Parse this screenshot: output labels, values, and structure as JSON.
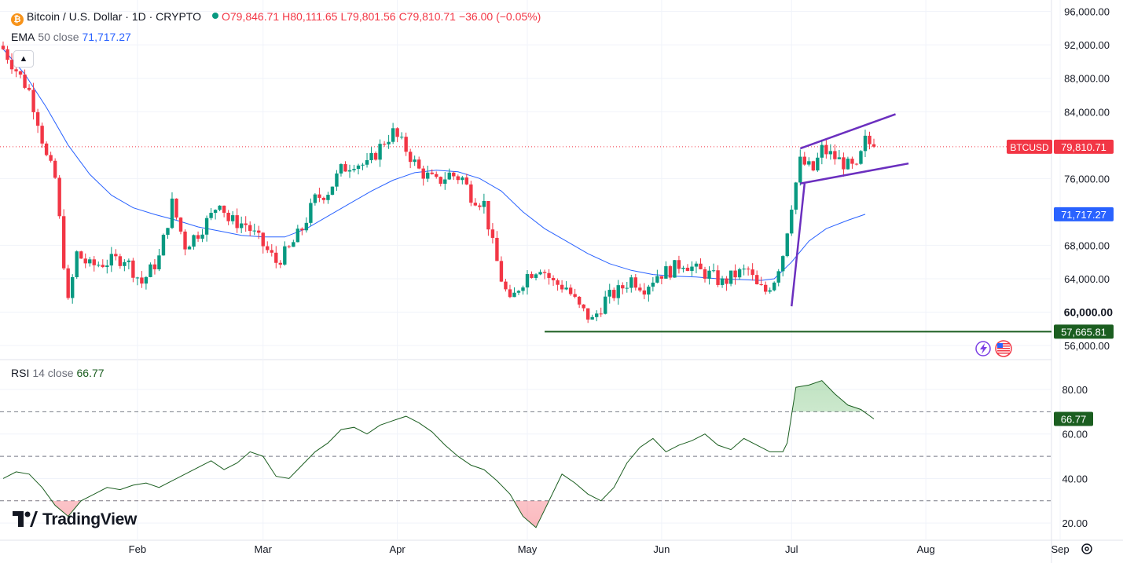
{
  "header": {
    "symbol": "Bitcoin / U.S. Dollar · 1D · CRYPTO",
    "coin_glyph": "₿",
    "o": "O79,846.71",
    "h": "H80,111.65",
    "l": "L79,801.56",
    "c": "C79,810.71",
    "change": "−36.00 (−0.05%)",
    "ema_label": "EMA",
    "ema_params": "50 close",
    "ema_value": "71,717.27",
    "rsi_label": "RSI",
    "rsi_params": "14 close",
    "rsi_value": "66.77"
  },
  "branding": "TradingView",
  "icons": [
    "bitcoin-coin-icon",
    "market-open-dot-icon",
    "collapse-chevron-icon",
    "settings-gear-icon",
    "lightning-icon",
    "us-flag-icon"
  ],
  "colors": {
    "up": "#089981",
    "down": "#f23645",
    "ema": "#2962ff",
    "rsi": "#1b5e20",
    "channel": "#6b2fbf",
    "support": "#1b5e20"
  },
  "chart_data": [
    {
      "type": "candlestick",
      "title": "Bitcoin / U.S. Dollar · 1D · CRYPTO",
      "ylim": [
        54500,
        97000
      ],
      "y_ticks": [
        "96,000.00",
        "92,000.00",
        "88,000.00",
        "84,000.00",
        "76,000.00",
        "68,000.00",
        "64,000.00",
        "56,000.00"
      ],
      "y_ticks_bold": [
        "60,000.00"
      ],
      "x_ticks": [
        "Feb",
        "Mar",
        "Apr",
        "May",
        "Jun",
        "Jul",
        "Aug",
        "Sep"
      ],
      "x_tick_days": [
        31,
        60,
        91,
        121,
        152,
        182,
        213,
        244
      ],
      "price_labels": [
        {
          "name": "BTCUSD",
          "value": "79,810.71",
          "price": 79810.71
        },
        {
          "name": "",
          "value": "71,717.27",
          "price": 71717.27
        },
        {
          "name": "",
          "value": "57,665.81",
          "price": 57665.81
        }
      ],
      "close_path": [
        [
          0,
          91500
        ],
        [
          3,
          89000
        ],
        [
          6,
          86500
        ],
        [
          8,
          83000
        ],
        [
          10,
          78500
        ],
        [
          12,
          76000
        ],
        [
          15,
          61000
        ],
        [
          17,
          67000
        ],
        [
          20,
          65500
        ],
        [
          24,
          66000
        ],
        [
          28,
          66500
        ],
        [
          32,
          63500
        ],
        [
          36,
          66500
        ],
        [
          39,
          73000
        ],
        [
          42,
          68000
        ],
        [
          45,
          69500
        ],
        [
          48,
          71500
        ],
        [
          50,
          73500
        ],
        [
          52,
          71000
        ],
        [
          56,
          70500
        ],
        [
          60,
          68000
        ],
        [
          63,
          66000
        ],
        [
          66,
          67500
        ],
        [
          69,
          70000
        ],
        [
          72,
          73500
        ],
        [
          75,
          74500
        ],
        [
          78,
          77000
        ],
        [
          81,
          78000
        ],
        [
          84,
          77500
        ],
        [
          86,
          79000
        ],
        [
          88,
          80500
        ],
        [
          90,
          81500
        ],
        [
          93,
          79500
        ],
        [
          96,
          77000
        ],
        [
          100,
          75500
        ],
        [
          103,
          76500
        ],
        [
          106,
          76000
        ],
        [
          108,
          74000
        ],
        [
          111,
          73000
        ],
        [
          113,
          68000
        ],
        [
          115,
          64000
        ],
        [
          117,
          61000
        ],
        [
          119,
          63000
        ],
        [
          121,
          64500
        ],
        [
          124,
          65500
        ],
        [
          127,
          63500
        ],
        [
          130,
          63000
        ],
        [
          133,
          60500
        ],
        [
          136,
          59000
        ],
        [
          139,
          61500
        ],
        [
          142,
          62500
        ],
        [
          145,
          64000
        ],
        [
          148,
          63000
        ],
        [
          151,
          64500
        ],
        [
          154,
          65000
        ],
        [
          157,
          66000
        ],
        [
          160,
          65000
        ],
        [
          163,
          64500
        ],
        [
          166,
          63500
        ],
        [
          169,
          64500
        ],
        [
          172,
          65000
        ],
        [
          174,
          63000
        ],
        [
          176,
          62500
        ],
        [
          178,
          64000
        ],
        [
          180,
          67000
        ],
        [
          182,
          73000
        ],
        [
          184,
          78000
        ],
        [
          187,
          77000
        ],
        [
          189,
          79500
        ],
        [
          192,
          78500
        ],
        [
          195,
          77500
        ],
        [
          197,
          77000
        ],
        [
          199,
          80500
        ],
        [
          201,
          79810.71
        ]
      ],
      "indicator": {
        "name": "EMA 50 close",
        "last": 71717.27,
        "path": [
          [
            0,
            91500
          ],
          [
            5,
            88500
          ],
          [
            10,
            84500
          ],
          [
            15,
            80000
          ],
          [
            20,
            76500
          ],
          [
            25,
            74000
          ],
          [
            30,
            72500
          ],
          [
            35,
            71700
          ],
          [
            40,
            71000
          ],
          [
            45,
            70200
          ],
          [
            50,
            69700
          ],
          [
            55,
            69200
          ],
          [
            60,
            69000
          ],
          [
            65,
            69000
          ],
          [
            70,
            70000
          ],
          [
            75,
            71500
          ],
          [
            80,
            73000
          ],
          [
            85,
            74500
          ],
          [
            90,
            75800
          ],
          [
            95,
            76700
          ],
          [
            100,
            77000
          ],
          [
            105,
            76800
          ],
          [
            110,
            76000
          ],
          [
            115,
            74500
          ],
          [
            120,
            72000
          ],
          [
            125,
            70000
          ],
          [
            130,
            68500
          ],
          [
            135,
            67000
          ],
          [
            140,
            65800
          ],
          [
            145,
            65000
          ],
          [
            150,
            64500
          ],
          [
            155,
            64300
          ],
          [
            160,
            64200
          ],
          [
            165,
            64000
          ],
          [
            170,
            63900
          ],
          [
            175,
            63800
          ],
          [
            178,
            64000
          ],
          [
            182,
            66000
          ],
          [
            186,
            68500
          ],
          [
            190,
            70000
          ],
          [
            195,
            71000
          ],
          [
            199,
            71717.27
          ]
        ]
      },
      "channel": {
        "upper": [
          [
            184,
            79600
          ],
          [
            206,
            83700
          ]
        ],
        "lower": [
          [
            184,
            75400
          ],
          [
            209,
            77800
          ]
        ],
        "flagpole": [
          [
            182,
            60700
          ],
          [
            185,
            75400
          ]
        ]
      },
      "support": {
        "price": 57665.81,
        "from_day": 125
      }
    },
    {
      "type": "line",
      "title": "RSI 14 close",
      "ylim": [
        13,
        92
      ],
      "y_ticks": [
        "80.00",
        "60.00",
        "40.00",
        "20.00"
      ],
      "bands": [
        70,
        50,
        30
      ],
      "last_value_label": "66.77",
      "x": [
        0,
        3,
        6,
        9,
        12,
        15,
        18,
        21,
        24,
        27,
        30,
        33,
        36,
        39,
        42,
        45,
        48,
        51,
        54,
        57,
        60,
        63,
        66,
        69,
        72,
        75,
        78,
        81,
        84,
        87,
        90,
        93,
        96,
        99,
        102,
        105,
        108,
        111,
        114,
        117,
        120,
        123,
        126,
        129,
        132,
        135,
        138,
        141,
        144,
        147,
        150,
        153,
        156,
        159,
        162,
        165,
        168,
        171,
        174,
        177,
        180,
        181,
        183,
        186,
        189,
        192,
        195,
        198,
        201
      ],
      "y": [
        40,
        43,
        42,
        36,
        28,
        23,
        30,
        33,
        36,
        35,
        37,
        38,
        36,
        39,
        42,
        45,
        48,
        44,
        47,
        52,
        50,
        41,
        40,
        46,
        52,
        56,
        62,
        63,
        60,
        64,
        66,
        68,
        65,
        61,
        55,
        50,
        46,
        44,
        39,
        33,
        23,
        18,
        30,
        42,
        38,
        33,
        30,
        36,
        47,
        54,
        58,
        52,
        55,
        57,
        60,
        55,
        53,
        58,
        55,
        52,
        52,
        56,
        81,
        82,
        84,
        78,
        73,
        71,
        66.77
      ]
    }
  ]
}
